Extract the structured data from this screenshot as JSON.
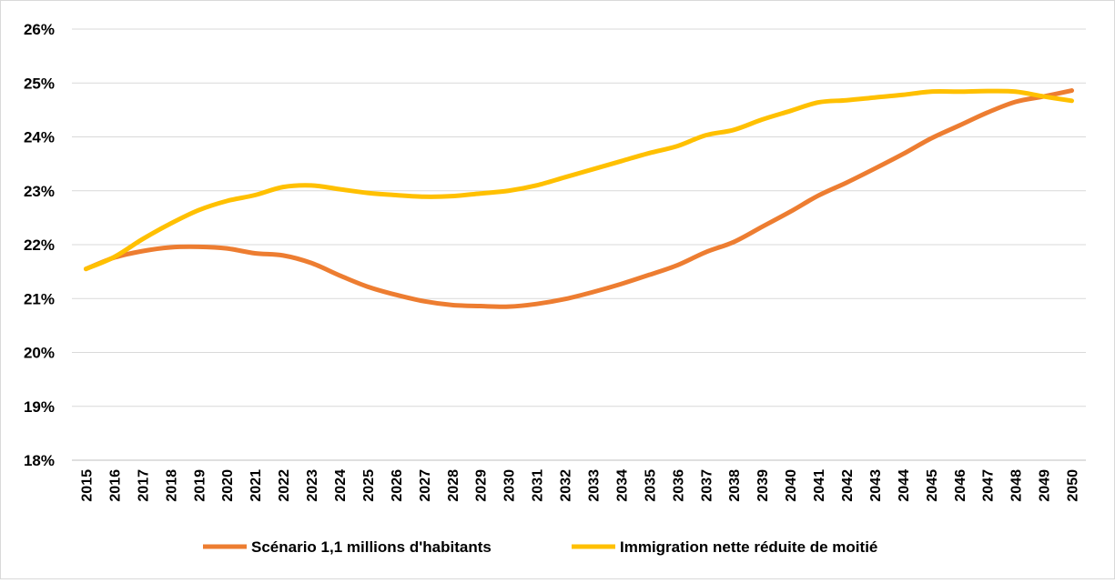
{
  "chart_data": {
    "type": "line",
    "title": "",
    "xlabel": "",
    "ylabel": "",
    "x": [
      "2015",
      "2016",
      "2017",
      "2018",
      "2019",
      "2020",
      "2021",
      "2022",
      "2023",
      "2024",
      "2025",
      "2026",
      "2027",
      "2028",
      "2029",
      "2030",
      "2031",
      "2032",
      "2033",
      "2034",
      "2035",
      "2036",
      "2037",
      "2038",
      "2039",
      "2040",
      "2041",
      "2042",
      "2043",
      "2044",
      "2045",
      "2046",
      "2047",
      "2048",
      "2049",
      "2050"
    ],
    "ylim": [
      0.18,
      0.26
    ],
    "yticks": [
      "18%",
      "19%",
      "20%",
      "21%",
      "22%",
      "23%",
      "24%",
      "25%",
      "26%"
    ],
    "grid": "horizontal",
    "legend_position": "bottom",
    "series": [
      {
        "name": "Scénario 1,1 millions d'habitants",
        "color": "#ED7D31",
        "values": [
          0.2155,
          0.2176,
          0.2188,
          0.2195,
          0.2196,
          0.2193,
          0.2184,
          0.218,
          0.2166,
          0.2143,
          0.2122,
          0.2107,
          0.2095,
          0.2088,
          0.2086,
          0.2085,
          0.209,
          0.2099,
          0.2112,
          0.2127,
          0.2144,
          0.2162,
          0.2186,
          0.2205,
          0.2233,
          0.2261,
          0.2291,
          0.2315,
          0.2341,
          0.2368,
          0.2397,
          0.2421,
          0.2445,
          0.2465,
          0.2475,
          0.2486
        ]
      },
      {
        "name": "Immigration nette réduite de moitié",
        "color": "#FFC000",
        "values": [
          0.2155,
          0.2177,
          0.221,
          0.2239,
          0.2264,
          0.2281,
          0.2292,
          0.2307,
          0.231,
          0.2303,
          0.2296,
          0.2292,
          0.2289,
          0.229,
          0.2295,
          0.23,
          0.231,
          0.2325,
          0.234,
          0.2355,
          0.237,
          0.2383,
          0.2403,
          0.2413,
          0.2432,
          0.2448,
          0.2464,
          0.2468,
          0.2473,
          0.2478,
          0.2484,
          0.2484,
          0.2485,
          0.2484,
          0.2475,
          0.2467
        ]
      }
    ]
  }
}
